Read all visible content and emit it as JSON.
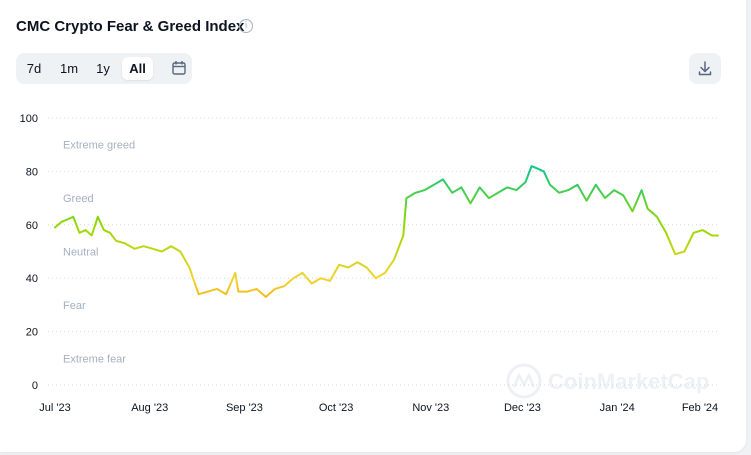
{
  "header": {
    "title": "CMC Crypto Fear & Greed Index",
    "info_icon": "info-icon"
  },
  "range_tabs": [
    {
      "label": "7d",
      "active": false
    },
    {
      "label": "1m",
      "active": false
    },
    {
      "label": "1y",
      "active": false
    },
    {
      "label": "All",
      "active": true
    }
  ],
  "icons": {
    "calendar": "calendar-icon",
    "download": "download-icon"
  },
  "watermark": "CoinMarketCap",
  "colors": {
    "extreme_fear": "#ea3943",
    "fear": "#ea8c00",
    "neutral": "#f3d42f",
    "greed": "#93d900",
    "extreme_greed": "#16c784",
    "grid": "#cfd6e4",
    "axis_text": "#0d1421",
    "zone_text": "#a6b0c3"
  },
  "chart_data": {
    "type": "line",
    "title": "CMC Crypto Fear & Greed Index",
    "xlabel": "",
    "ylabel": "",
    "ylim": [
      0,
      100
    ],
    "grid": true,
    "y_ticks": [
      0,
      20,
      40,
      60,
      80,
      100
    ],
    "x_ticks": [
      "Jul '23",
      "Aug '23",
      "Sep '23",
      "Oct '23",
      "Nov '23",
      "Dec '23",
      "Jan '24",
      "Feb '24"
    ],
    "zones": [
      "Extreme greed",
      "Greed",
      "Neutral",
      "Fear",
      "Extreme fear"
    ],
    "x": [
      "2023-07-01",
      "2023-07-03",
      "2023-07-05",
      "2023-07-07",
      "2023-07-09",
      "2023-07-11",
      "2023-07-13",
      "2023-07-15",
      "2023-07-17",
      "2023-07-19",
      "2023-07-21",
      "2023-07-24",
      "2023-07-27",
      "2023-07-30",
      "2023-08-02",
      "2023-08-05",
      "2023-08-08",
      "2023-08-11",
      "2023-08-14",
      "2023-08-17",
      "2023-08-20",
      "2023-08-23",
      "2023-08-26",
      "2023-08-29",
      "2023-08-30",
      "2023-09-02",
      "2023-09-05",
      "2023-09-08",
      "2023-09-11",
      "2023-09-14",
      "2023-09-17",
      "2023-09-20",
      "2023-09-23",
      "2023-09-26",
      "2023-09-29",
      "2023-10-02",
      "2023-10-05",
      "2023-10-08",
      "2023-10-11",
      "2023-10-14",
      "2023-10-17",
      "2023-10-20",
      "2023-10-23",
      "2023-10-24",
      "2023-10-27",
      "2023-10-30",
      "2023-11-02",
      "2023-11-05",
      "2023-11-08",
      "2023-11-11",
      "2023-11-14",
      "2023-11-17",
      "2023-11-20",
      "2023-11-23",
      "2023-11-26",
      "2023-11-29",
      "2023-12-02",
      "2023-12-04",
      "2023-12-06",
      "2023-12-08",
      "2023-12-10",
      "2023-12-13",
      "2023-12-16",
      "2023-12-19",
      "2023-12-22",
      "2023-12-25",
      "2023-12-28",
      "2023-12-31",
      "2024-01-03",
      "2024-01-06",
      "2024-01-09",
      "2024-01-11",
      "2024-01-14",
      "2024-01-17",
      "2024-01-20",
      "2024-01-23",
      "2024-01-26",
      "2024-01-29",
      "2024-02-01",
      "2024-02-03"
    ],
    "series": [
      {
        "values": [
          59,
          61,
          62,
          63,
          57,
          58,
          56,
          63,
          58,
          57,
          54,
          53,
          51,
          52,
          51,
          50,
          52,
          50,
          44,
          34,
          35,
          36,
          34,
          42,
          35,
          35,
          36,
          33,
          36,
          37,
          40,
          42,
          38,
          40,
          39,
          45,
          44,
          46,
          44,
          40,
          42,
          47,
          56,
          70,
          72,
          73,
          75,
          77,
          72,
          74,
          68,
          74,
          70,
          72,
          74,
          73,
          76,
          82,
          81,
          80,
          75,
          72,
          73,
          75,
          69,
          75,
          70,
          73,
          71,
          65,
          73,
          66,
          63,
          57,
          49,
          50,
          57,
          58,
          56,
          56
        ]
      }
    ]
  }
}
